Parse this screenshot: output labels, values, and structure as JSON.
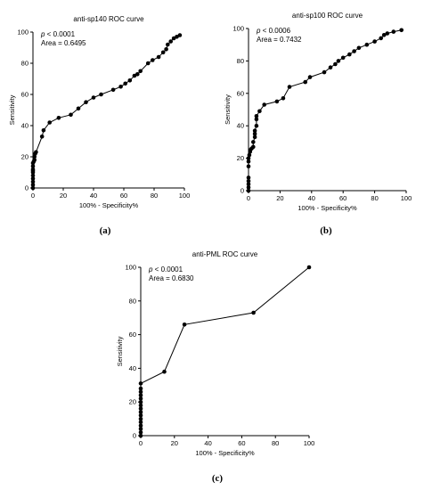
{
  "chart_data": [
    {
      "type": "line",
      "panel_label": "(a)",
      "title": "anti-sp140 ROC curve",
      "annotation_p_symbol": "p",
      "annotation_p_rest": " < 0.0001",
      "annotation_area": "Area = 0.6495",
      "xlabel": "100% - Specificity%",
      "ylabel": "Sensitivity",
      "xlim": [
        0,
        100
      ],
      "ylim": [
        0,
        100
      ],
      "xticks": [
        "0",
        "20",
        "40",
        "60",
        "80",
        "100"
      ],
      "yticks": [
        "0",
        "20",
        "40",
        "60",
        "80",
        "100"
      ],
      "grid": false,
      "points": {
        "x": [
          0,
          0,
          0,
          0,
          0,
          0,
          0,
          0,
          0,
          0,
          0.5,
          1,
          1,
          1.5,
          2,
          6,
          7,
          11,
          17,
          25,
          30,
          35,
          40,
          45,
          53,
          58,
          61,
          64,
          67,
          69,
          71,
          76,
          79,
          83,
          86,
          88,
          89,
          91,
          93,
          95,
          97
        ],
        "y": [
          0,
          2,
          4,
          6,
          8,
          10,
          11,
          12,
          14,
          16,
          17,
          18,
          20,
          22,
          23,
          33,
          37,
          42,
          45,
          47,
          51,
          55,
          58,
          60,
          63,
          65,
          67,
          69,
          72,
          73,
          75,
          80,
          82,
          84,
          87,
          89,
          92,
          94,
          96,
          97,
          98
        ]
      }
    },
    {
      "type": "line",
      "panel_label": "(b)",
      "title": "anti-sp100 ROC curve",
      "annotation_p_symbol": "p",
      "annotation_p_rest": " < 0.0006",
      "annotation_area": "Area = 0.7432",
      "xlabel": "100% - Specificity%",
      "ylabel": "Sensitivity",
      "xlim": [
        0,
        100
      ],
      "ylim": [
        0,
        100
      ],
      "xticks": [
        "0",
        "20",
        "40",
        "60",
        "80",
        "100"
      ],
      "yticks": [
        "0",
        "20",
        "40",
        "60",
        "80",
        "100"
      ],
      "grid": false,
      "points": {
        "x": [
          0,
          0,
          0,
          0,
          0,
          0,
          0,
          0,
          0.5,
          1,
          1,
          2,
          3,
          3,
          4,
          4,
          4,
          5,
          5,
          5,
          7,
          10,
          18,
          22,
          26,
          36,
          39,
          48,
          52,
          55,
          57,
          60,
          64,
          67,
          70,
          75,
          80,
          84,
          86,
          88,
          92,
          97
        ],
        "y": [
          0,
          2,
          4,
          6,
          8,
          15,
          18,
          20,
          22,
          24,
          25,
          26,
          27,
          30,
          33,
          35,
          37,
          40,
          44,
          46,
          49,
          53,
          55,
          57,
          64,
          67,
          70,
          73,
          76,
          78,
          80,
          82,
          84,
          86,
          88,
          90,
          92,
          94,
          96,
          97,
          98,
          99
        ]
      }
    },
    {
      "type": "line",
      "panel_label": "(c)",
      "title": "anti-PML ROC curve",
      "annotation_p_symbol": "p",
      "annotation_p_rest": " < 0.0001",
      "annotation_area": "Area = 0.6830",
      "xlabel": "100% - Specificity%",
      "ylabel": "Sensitivity",
      "xlim": [
        0,
        100
      ],
      "ylim": [
        0,
        100
      ],
      "xticks": [
        "0",
        "20",
        "40",
        "60",
        "80",
        "100"
      ],
      "yticks": [
        "0",
        "20",
        "40",
        "60",
        "80",
        "100"
      ],
      "grid": false,
      "points": {
        "x": [
          0,
          0,
          0,
          0,
          0,
          0,
          0,
          0,
          0,
          0,
          0,
          0,
          0,
          0,
          0,
          0,
          14,
          26,
          67,
          100
        ],
        "y": [
          0,
          2,
          4,
          6,
          8,
          10,
          12,
          14,
          16,
          18,
          20,
          22,
          24,
          26,
          28,
          31,
          38,
          66,
          73,
          100
        ]
      }
    }
  ]
}
